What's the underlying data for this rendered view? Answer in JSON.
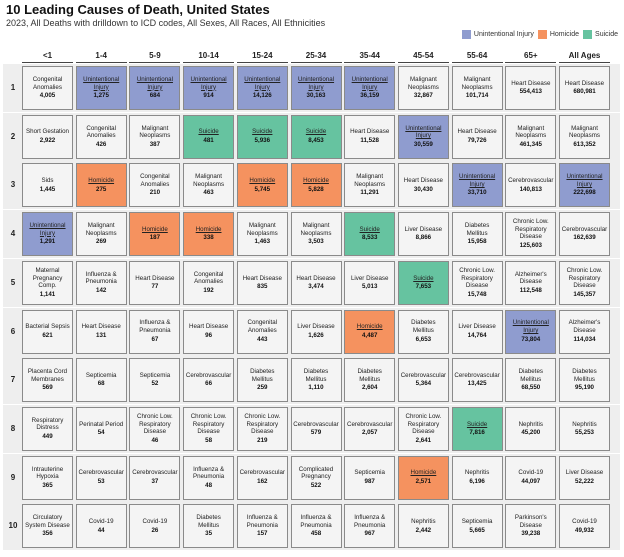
{
  "title": "10 Leading Causes of Death, United States",
  "subtitle": "2023, All Deaths with drilldown to ICD codes, All Sexes, All Races, All Ethnicities",
  "legend": [
    {
      "label": "Unintentional Injury",
      "color": "#8f9ccf",
      "key": "injury"
    },
    {
      "label": "Homicide",
      "color": "#f5925f",
      "key": "homicide"
    },
    {
      "label": "Suicide",
      "color": "#66c3a0",
      "key": "suicide"
    }
  ],
  "chart_data": {
    "type": "table",
    "columns": [
      "<1",
      "1-4",
      "5-9",
      "10-14",
      "15-24",
      "25-34",
      "35-44",
      "45-54",
      "55-64",
      "65+",
      "All Ages"
    ],
    "ranks": [
      "1",
      "2",
      "3",
      "4",
      "5",
      "6",
      "7",
      "8",
      "9",
      "10"
    ],
    "rows": [
      [
        {
          "cause": "Congenital Anomalies",
          "value": "4,005",
          "cat": ""
        },
        {
          "cause": "Unintentional Injury",
          "value": "1,275",
          "cat": "injury"
        },
        {
          "cause": "Unintentional Injury",
          "value": "684",
          "cat": "injury"
        },
        {
          "cause": "Unintentional Injury",
          "value": "914",
          "cat": "injury"
        },
        {
          "cause": "Unintentional Injury",
          "value": "14,126",
          "cat": "injury"
        },
        {
          "cause": "Unintentional Injury",
          "value": "30,163",
          "cat": "injury"
        },
        {
          "cause": "Unintentional Injury",
          "value": "36,159",
          "cat": "injury"
        },
        {
          "cause": "Malignant Neoplasms",
          "value": "32,867",
          "cat": ""
        },
        {
          "cause": "Malignant Neoplasms",
          "value": "101,714",
          "cat": ""
        },
        {
          "cause": "Heart Disease",
          "value": "554,413",
          "cat": ""
        },
        {
          "cause": "Heart Disease",
          "value": "680,981",
          "cat": ""
        }
      ],
      [
        {
          "cause": "Short Gestation",
          "value": "2,922",
          "cat": ""
        },
        {
          "cause": "Congenital Anomalies",
          "value": "426",
          "cat": ""
        },
        {
          "cause": "Malignant Neoplasms",
          "value": "387",
          "cat": ""
        },
        {
          "cause": "Suicide",
          "value": "481",
          "cat": "suicide"
        },
        {
          "cause": "Suicide",
          "value": "5,936",
          "cat": "suicide"
        },
        {
          "cause": "Suicide",
          "value": "8,453",
          "cat": "suicide"
        },
        {
          "cause": "Heart Disease",
          "value": "11,528",
          "cat": ""
        },
        {
          "cause": "Unintentional Injury",
          "value": "30,559",
          "cat": "injury"
        },
        {
          "cause": "Heart Disease",
          "value": "79,726",
          "cat": ""
        },
        {
          "cause": "Malignant Neoplasms",
          "value": "461,345",
          "cat": ""
        },
        {
          "cause": "Malignant Neoplasms",
          "value": "613,352",
          "cat": ""
        }
      ],
      [
        {
          "cause": "Sids",
          "value": "1,445",
          "cat": ""
        },
        {
          "cause": "Homicide",
          "value": "275",
          "cat": "homicide"
        },
        {
          "cause": "Congenital Anomalies",
          "value": "210",
          "cat": ""
        },
        {
          "cause": "Malignant Neoplasms",
          "value": "463",
          "cat": ""
        },
        {
          "cause": "Homicide",
          "value": "5,745",
          "cat": "homicide"
        },
        {
          "cause": "Homicide",
          "value": "5,828",
          "cat": "homicide"
        },
        {
          "cause": "Malignant Neoplasms",
          "value": "11,291",
          "cat": ""
        },
        {
          "cause": "Heart Disease",
          "value": "30,430",
          "cat": ""
        },
        {
          "cause": "Unintentional Injury",
          "value": "33,710",
          "cat": "injury"
        },
        {
          "cause": "Cerebrovascular",
          "value": "140,813",
          "cat": ""
        },
        {
          "cause": "Unintentional Injury",
          "value": "222,698",
          "cat": "injury"
        }
      ],
      [
        {
          "cause": "Unintentional Injury",
          "value": "1,291",
          "cat": "injury"
        },
        {
          "cause": "Malignant Neoplasms",
          "value": "269",
          "cat": ""
        },
        {
          "cause": "Homicide",
          "value": "187",
          "cat": "homicide"
        },
        {
          "cause": "Homicide",
          "value": "338",
          "cat": "homicide"
        },
        {
          "cause": "Malignant Neoplasms",
          "value": "1,463",
          "cat": ""
        },
        {
          "cause": "Malignant Neoplasms",
          "value": "3,503",
          "cat": ""
        },
        {
          "cause": "Suicide",
          "value": "8,533",
          "cat": "suicide"
        },
        {
          "cause": "Liver Disease",
          "value": "8,866",
          "cat": ""
        },
        {
          "cause": "Diabetes Mellitus",
          "value": "15,958",
          "cat": ""
        },
        {
          "cause": "Chronic Low. Respiratory Disease",
          "value": "125,603",
          "cat": ""
        },
        {
          "cause": "Cerebrovascular",
          "value": "162,639",
          "cat": ""
        }
      ],
      [
        {
          "cause": "Maternal Pregnancy Comp.",
          "value": "1,141",
          "cat": ""
        },
        {
          "cause": "Influenza & Pneumonia",
          "value": "142",
          "cat": ""
        },
        {
          "cause": "Heart Disease",
          "value": "77",
          "cat": ""
        },
        {
          "cause": "Congenital Anomalies",
          "value": "192",
          "cat": ""
        },
        {
          "cause": "Heart Disease",
          "value": "835",
          "cat": ""
        },
        {
          "cause": "Heart Disease",
          "value": "3,474",
          "cat": ""
        },
        {
          "cause": "Liver Disease",
          "value": "5,013",
          "cat": ""
        },
        {
          "cause": "Suicide",
          "value": "7,653",
          "cat": "suicide"
        },
        {
          "cause": "Chronic Low. Respiratory Disease",
          "value": "15,748",
          "cat": ""
        },
        {
          "cause": "Alzheimer's Disease",
          "value": "112,548",
          "cat": ""
        },
        {
          "cause": "Chronic Low. Respiratory Disease",
          "value": "145,357",
          "cat": ""
        }
      ],
      [
        {
          "cause": "Bacterial Sepsis",
          "value": "621",
          "cat": ""
        },
        {
          "cause": "Heart Disease",
          "value": "131",
          "cat": ""
        },
        {
          "cause": "Influenza & Pneumonia",
          "value": "67",
          "cat": ""
        },
        {
          "cause": "Heart Disease",
          "value": "96",
          "cat": ""
        },
        {
          "cause": "Congenital Anomalies",
          "value": "443",
          "cat": ""
        },
        {
          "cause": "Liver Disease",
          "value": "1,626",
          "cat": ""
        },
        {
          "cause": "Homicide",
          "value": "4,487",
          "cat": "homicide"
        },
        {
          "cause": "Diabetes Mellitus",
          "value": "6,653",
          "cat": ""
        },
        {
          "cause": "Liver Disease",
          "value": "14,764",
          "cat": ""
        },
        {
          "cause": "Unintentional Injury",
          "value": "73,804",
          "cat": "injury"
        },
        {
          "cause": "Alzheimer's Disease",
          "value": "114,034",
          "cat": ""
        }
      ],
      [
        {
          "cause": "Placenta Cord Membranes",
          "value": "569",
          "cat": ""
        },
        {
          "cause": "Septicemia",
          "value": "68",
          "cat": ""
        },
        {
          "cause": "Septicemia",
          "value": "52",
          "cat": ""
        },
        {
          "cause": "Cerebrovascular",
          "value": "66",
          "cat": ""
        },
        {
          "cause": "Diabetes Mellitus",
          "value": "259",
          "cat": ""
        },
        {
          "cause": "Diabetes Mellitus",
          "value": "1,110",
          "cat": ""
        },
        {
          "cause": "Diabetes Mellitus",
          "value": "2,604",
          "cat": ""
        },
        {
          "cause": "Cerebrovascular",
          "value": "5,364",
          "cat": ""
        },
        {
          "cause": "Cerebrovascular",
          "value": "13,425",
          "cat": ""
        },
        {
          "cause": "Diabetes Mellitus",
          "value": "68,550",
          "cat": ""
        },
        {
          "cause": "Diabetes Mellitus",
          "value": "95,190",
          "cat": ""
        }
      ],
      [
        {
          "cause": "Respiratory Distress",
          "value": "449",
          "cat": ""
        },
        {
          "cause": "Perinatal Period",
          "value": "54",
          "cat": ""
        },
        {
          "cause": "Chronic Low. Respiratory Disease",
          "value": "46",
          "cat": ""
        },
        {
          "cause": "Chronic Low. Respiratory Disease",
          "value": "58",
          "cat": ""
        },
        {
          "cause": "Chronic Low. Respiratory Disease",
          "value": "219",
          "cat": ""
        },
        {
          "cause": "Cerebrovascular",
          "value": "579",
          "cat": ""
        },
        {
          "cause": "Cerebrovascular",
          "value": "2,057",
          "cat": ""
        },
        {
          "cause": "Chronic Low. Respiratory Disease",
          "value": "2,641",
          "cat": ""
        },
        {
          "cause": "Suicide",
          "value": "7,816",
          "cat": "suicide"
        },
        {
          "cause": "Nephritis",
          "value": "45,200",
          "cat": ""
        },
        {
          "cause": "Nephritis",
          "value": "55,253",
          "cat": ""
        }
      ],
      [
        {
          "cause": "Intrauterine Hypoxia",
          "value": "365",
          "cat": ""
        },
        {
          "cause": "Cerebrovascular",
          "value": "53",
          "cat": ""
        },
        {
          "cause": "Cerebrovascular",
          "value": "37",
          "cat": ""
        },
        {
          "cause": "Influenza & Pneumonia",
          "value": "48",
          "cat": ""
        },
        {
          "cause": "Cerebrovascular",
          "value": "162",
          "cat": ""
        },
        {
          "cause": "Complicated Pregnancy",
          "value": "522",
          "cat": ""
        },
        {
          "cause": "Septicemia",
          "value": "987",
          "cat": ""
        },
        {
          "cause": "Homicide",
          "value": "2,571",
          "cat": "homicide"
        },
        {
          "cause": "Nephritis",
          "value": "6,196",
          "cat": ""
        },
        {
          "cause": "Covid-19",
          "value": "44,097",
          "cat": ""
        },
        {
          "cause": "Liver Disease",
          "value": "52,222",
          "cat": ""
        }
      ],
      [
        {
          "cause": "Circulatory System Disease",
          "value": "356",
          "cat": ""
        },
        {
          "cause": "Covid-19",
          "value": "44",
          "cat": ""
        },
        {
          "cause": "Covid-19",
          "value": "26",
          "cat": ""
        },
        {
          "cause": "Diabetes Mellitus",
          "value": "35",
          "cat": ""
        },
        {
          "cause": "Influenza & Pneumonia",
          "value": "157",
          "cat": ""
        },
        {
          "cause": "Influenza & Pneumonia",
          "value": "458",
          "cat": ""
        },
        {
          "cause": "Influenza & Pneumonia",
          "value": "967",
          "cat": ""
        },
        {
          "cause": "Nephritis",
          "value": "2,442",
          "cat": ""
        },
        {
          "cause": "Septicemia",
          "value": "5,665",
          "cat": ""
        },
        {
          "cause": "Parkinson's Disease",
          "value": "39,238",
          "cat": ""
        },
        {
          "cause": "Covid-19",
          "value": "49,932",
          "cat": ""
        }
      ]
    ]
  }
}
